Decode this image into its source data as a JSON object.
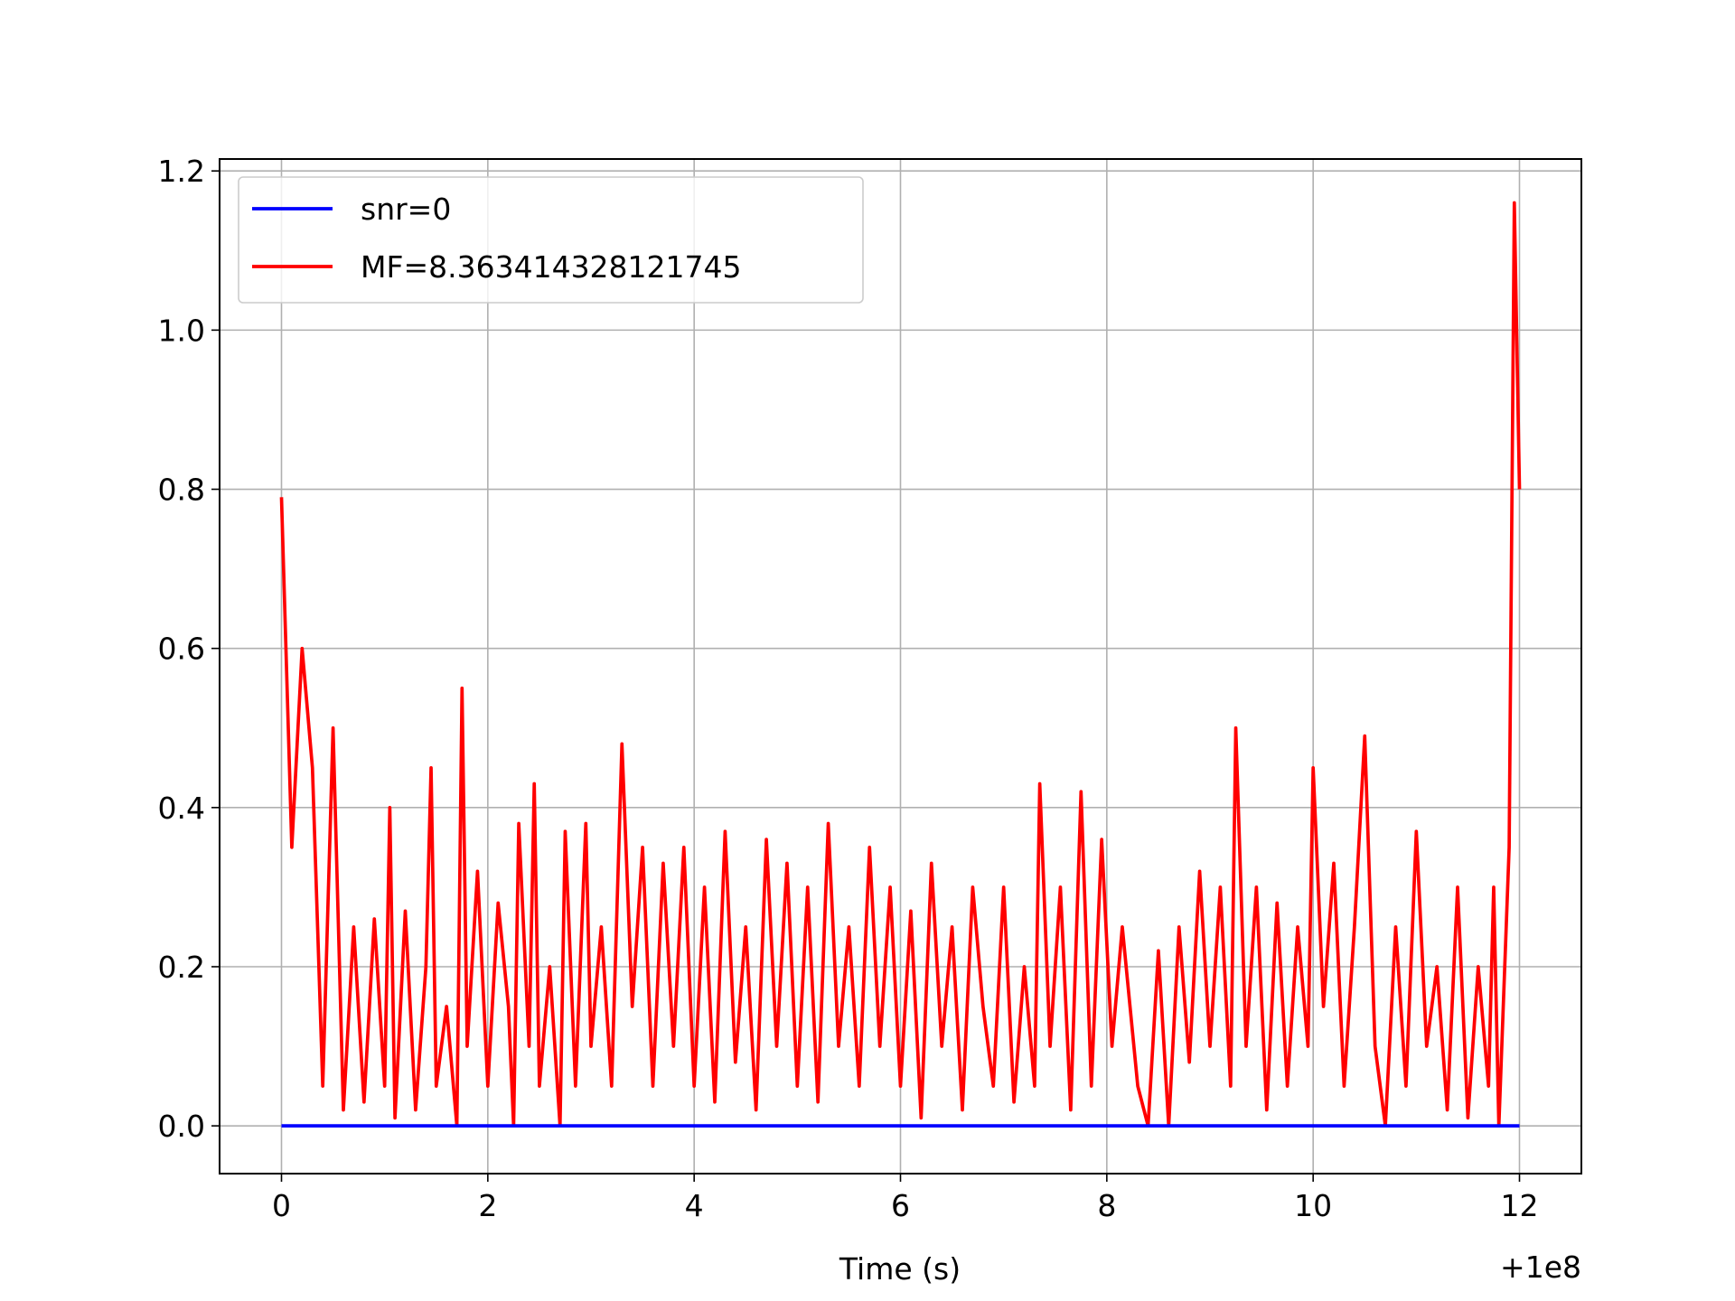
{
  "chart_data": {
    "type": "line",
    "x_label": "Time (s)",
    "x_offset_label": "+1e8",
    "xlim": [
      -0.6,
      12.6
    ],
    "ylim": [
      -0.06,
      1.215
    ],
    "xticks": [
      0,
      2,
      4,
      6,
      8,
      10,
      12
    ],
    "yticks": [
      {
        "value": 0,
        "label": "0.0"
      },
      0.2,
      0.4,
      0.6,
      0.8,
      {
        "value": 1,
        "label": "1.0"
      },
      1.2
    ],
    "grid": true,
    "legend": "upper left",
    "series": [
      {
        "name": "snr=0",
        "color": "#0000ff",
        "x": [
          0,
          12
        ],
        "values": [
          0,
          0
        ]
      },
      {
        "name": "MF=8.363414328121745",
        "color": "#ff0000",
        "x": [
          0.0,
          0.1,
          0.2,
          0.3,
          0.4,
          0.5,
          0.6,
          0.7,
          0.8,
          0.9,
          1.0,
          1.05,
          1.1,
          1.2,
          1.3,
          1.4,
          1.45,
          1.5,
          1.6,
          1.7,
          1.75,
          1.8,
          1.9,
          2.0,
          2.1,
          2.2,
          2.25,
          2.3,
          2.4,
          2.45,
          2.5,
          2.6,
          2.7,
          2.75,
          2.85,
          2.95,
          3.0,
          3.1,
          3.2,
          3.3,
          3.4,
          3.5,
          3.6,
          3.7,
          3.8,
          3.9,
          4.0,
          4.1,
          4.2,
          4.3,
          4.4,
          4.5,
          4.6,
          4.7,
          4.8,
          4.9,
          5.0,
          5.1,
          5.2,
          5.3,
          5.4,
          5.5,
          5.6,
          5.7,
          5.8,
          5.9,
          6.0,
          6.1,
          6.2,
          6.3,
          6.4,
          6.5,
          6.6,
          6.7,
          6.8,
          6.9,
          7.0,
          7.1,
          7.2,
          7.3,
          7.35,
          7.45,
          7.55,
          7.65,
          7.75,
          7.85,
          7.95,
          8.05,
          8.15,
          8.3,
          8.4,
          8.5,
          8.6,
          8.7,
          8.8,
          8.9,
          9.0,
          9.1,
          9.2,
          9.25,
          9.35,
          9.45,
          9.55,
          9.65,
          9.75,
          9.85,
          9.95,
          10.0,
          10.1,
          10.2,
          10.3,
          10.4,
          10.5,
          10.6,
          10.7,
          10.8,
          10.9,
          11.0,
          11.1,
          11.2,
          11.3,
          11.4,
          11.5,
          11.6,
          11.7,
          11.75,
          11.8,
          11.9,
          11.95,
          12.0
        ],
        "values": [
          0.79,
          0.35,
          0.6,
          0.45,
          0.05,
          0.5,
          0.02,
          0.25,
          0.03,
          0.26,
          0.05,
          0.4,
          0.01,
          0.27,
          0.02,
          0.2,
          0.45,
          0.05,
          0.15,
          0.0,
          0.55,
          0.1,
          0.32,
          0.05,
          0.28,
          0.15,
          0.0,
          0.38,
          0.1,
          0.43,
          0.05,
          0.2,
          0.0,
          0.37,
          0.05,
          0.38,
          0.1,
          0.25,
          0.05,
          0.48,
          0.15,
          0.35,
          0.05,
          0.33,
          0.1,
          0.35,
          0.05,
          0.3,
          0.03,
          0.37,
          0.08,
          0.25,
          0.02,
          0.36,
          0.1,
          0.33,
          0.05,
          0.3,
          0.03,
          0.38,
          0.1,
          0.25,
          0.05,
          0.35,
          0.1,
          0.3,
          0.05,
          0.27,
          0.01,
          0.33,
          0.1,
          0.25,
          0.02,
          0.3,
          0.15,
          0.05,
          0.3,
          0.03,
          0.2,
          0.05,
          0.43,
          0.1,
          0.3,
          0.02,
          0.42,
          0.05,
          0.36,
          0.1,
          0.25,
          0.05,
          0.0,
          0.22,
          0.0,
          0.25,
          0.08,
          0.32,
          0.1,
          0.3,
          0.05,
          0.5,
          0.1,
          0.3,
          0.02,
          0.28,
          0.05,
          0.25,
          0.1,
          0.45,
          0.15,
          0.33,
          0.05,
          0.25,
          0.49,
          0.1,
          0.0,
          0.25,
          0.05,
          0.37,
          0.1,
          0.2,
          0.02,
          0.3,
          0.01,
          0.2,
          0.05,
          0.3,
          0.0,
          0.35,
          1.16,
          0.8
        ]
      }
    ]
  }
}
